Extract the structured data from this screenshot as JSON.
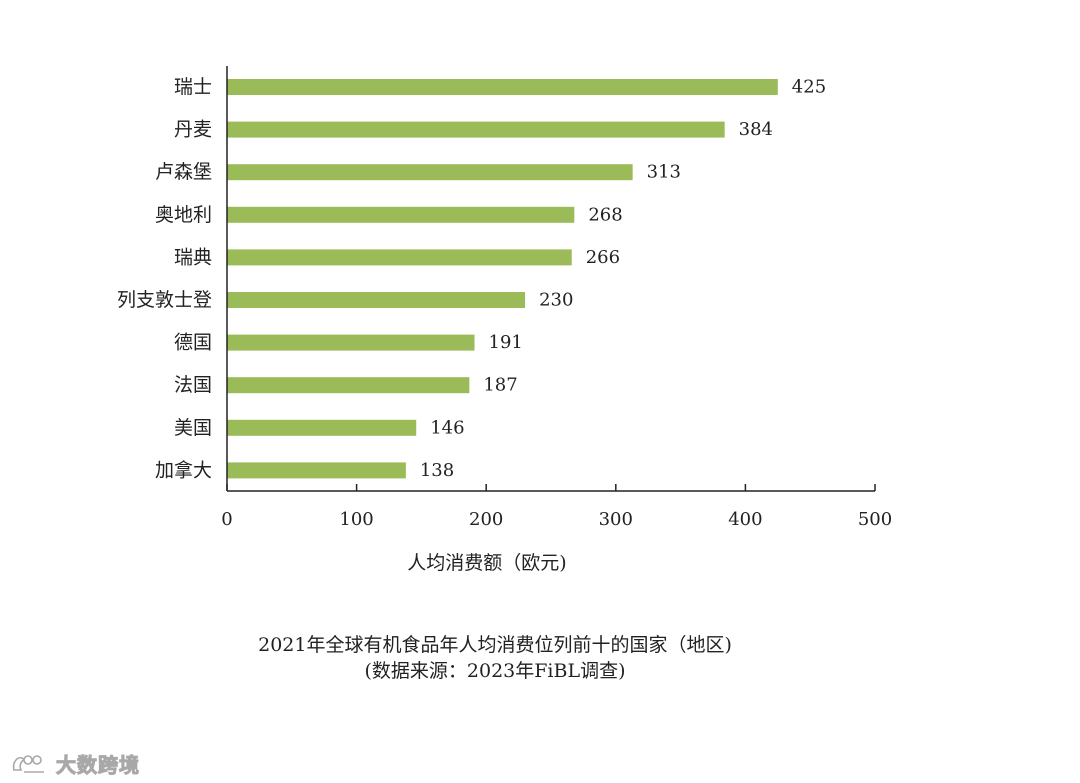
{
  "chart_data": {
    "type": "bar",
    "orientation": "horizontal",
    "categories": [
      "瑞士",
      "丹麦",
      "卢森堡",
      "奥地利",
      "瑞典",
      "列支敦士登",
      "德国",
      "法国",
      "美国",
      "加拿大"
    ],
    "values": [
      425,
      384,
      313,
      268,
      266,
      230,
      191,
      187,
      146,
      138
    ],
    "xlabel": "人均消费额（欧元)",
    "xlim": [
      0,
      500
    ],
    "xticks": [
      0,
      100,
      200,
      300,
      400,
      500
    ],
    "bar_color": "#9bbb59",
    "grid": false,
    "legend": "none",
    "caption": {
      "line1": "2021年全球有机食品年人均消费位列前十的国家（地区)",
      "line2": "(数据来源：2023年FiBL调查)"
    }
  },
  "watermark": {
    "text": "大数跨境",
    "logo": "ebrun-logo"
  }
}
